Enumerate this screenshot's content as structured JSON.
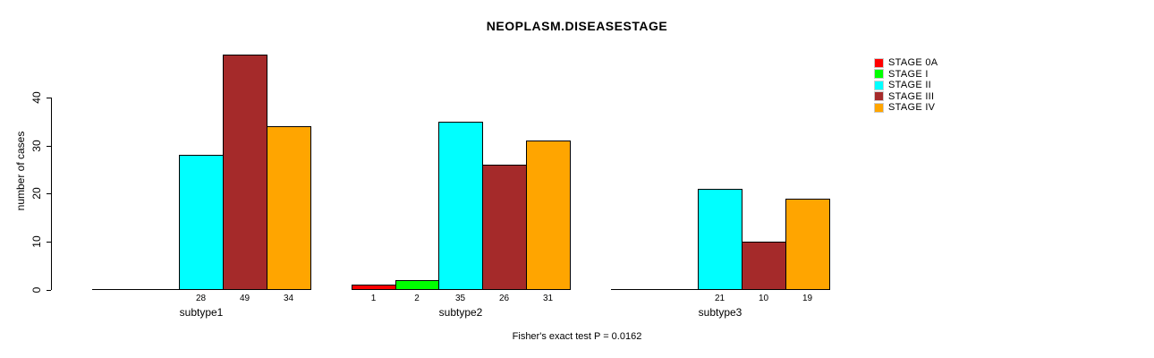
{
  "chart_data": {
    "type": "bar",
    "title": "NEOPLASM.DISEASESTAGE",
    "ylabel": "number of cases",
    "xlabel": "",
    "ylim": [
      0,
      49
    ],
    "yticks": [
      0,
      10,
      20,
      30,
      40
    ],
    "grid": false,
    "legend_position": "topright",
    "groups": [
      "subtype1",
      "subtype2",
      "subtype3"
    ],
    "series": [
      {
        "name": "STAGE 0A",
        "color": "#ff0000",
        "values": [
          0,
          1,
          0
        ]
      },
      {
        "name": "STAGE I",
        "color": "#00ff00",
        "values": [
          0,
          2,
          0
        ]
      },
      {
        "name": "STAGE II",
        "color": "#00ffff",
        "values": [
          28,
          35,
          21
        ]
      },
      {
        "name": "STAGE III",
        "color": "#a52a2a",
        "values": [
          49,
          26,
          10
        ]
      },
      {
        "name": "STAGE IV",
        "color": "#ffa500",
        "values": [
          34,
          31,
          19
        ]
      }
    ],
    "bar_value_label_rule": "value shown under each bar, hidden when 0",
    "annotation": "Fisher's exact test P = 0.0162"
  }
}
